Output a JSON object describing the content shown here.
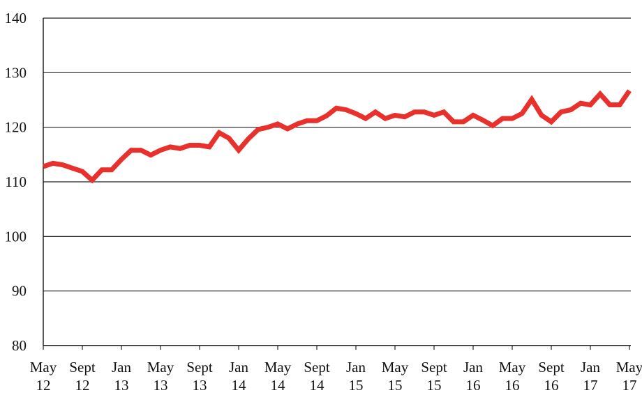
{
  "chart_data": {
    "type": "line",
    "categories": [
      [
        "May",
        "12"
      ],
      null,
      null,
      null,
      [
        "Sept",
        "12"
      ],
      null,
      null,
      null,
      [
        "Jan",
        "13"
      ],
      null,
      null,
      null,
      [
        "May",
        "13"
      ],
      null,
      null,
      null,
      [
        "Sept",
        "13"
      ],
      null,
      null,
      null,
      [
        "Jan",
        "14"
      ],
      null,
      null,
      null,
      [
        "May",
        "14"
      ],
      null,
      null,
      null,
      [
        "Sept",
        "14"
      ],
      null,
      null,
      null,
      [
        "Jan",
        "15"
      ],
      null,
      null,
      null,
      [
        "May",
        "15"
      ],
      null,
      null,
      null,
      [
        "Sept",
        "15"
      ],
      null,
      null,
      null,
      [
        "Jan",
        "16"
      ],
      null,
      null,
      null,
      [
        "May",
        "16"
      ],
      null,
      null,
      null,
      [
        "Sept",
        "16"
      ],
      null,
      null,
      null,
      [
        "Jan",
        "17"
      ],
      null,
      null,
      null,
      [
        "May",
        "17"
      ]
    ],
    "series": [
      {
        "color": "#e8302c",
        "values": [
          112.8,
          113.4,
          113.1,
          112.5,
          111.9,
          110.3,
          112.2,
          112.2,
          114.1,
          115.8,
          115.8,
          114.9,
          115.8,
          116.4,
          116.1,
          116.7,
          116.7,
          116.4,
          119.0,
          118.0,
          115.8,
          117.9,
          119.6,
          120.0,
          120.6,
          119.7,
          120.6,
          121.2,
          121.2,
          122.1,
          123.5,
          123.2,
          122.5,
          121.6,
          122.8,
          121.6,
          122.2,
          121.9,
          122.8,
          122.8,
          122.2,
          122.8,
          121.0,
          121.0,
          122.2,
          121.3,
          120.3,
          121.6,
          121.6,
          122.5,
          125.1,
          122.2,
          121.0,
          122.8,
          123.2,
          124.4,
          124.1,
          126.1,
          124.1,
          124.1,
          126.7
        ]
      }
    ],
    "ylim": [
      80,
      140
    ],
    "yticks": [
      80,
      90,
      100,
      110,
      120,
      130,
      140
    ],
    "grid": true
  }
}
